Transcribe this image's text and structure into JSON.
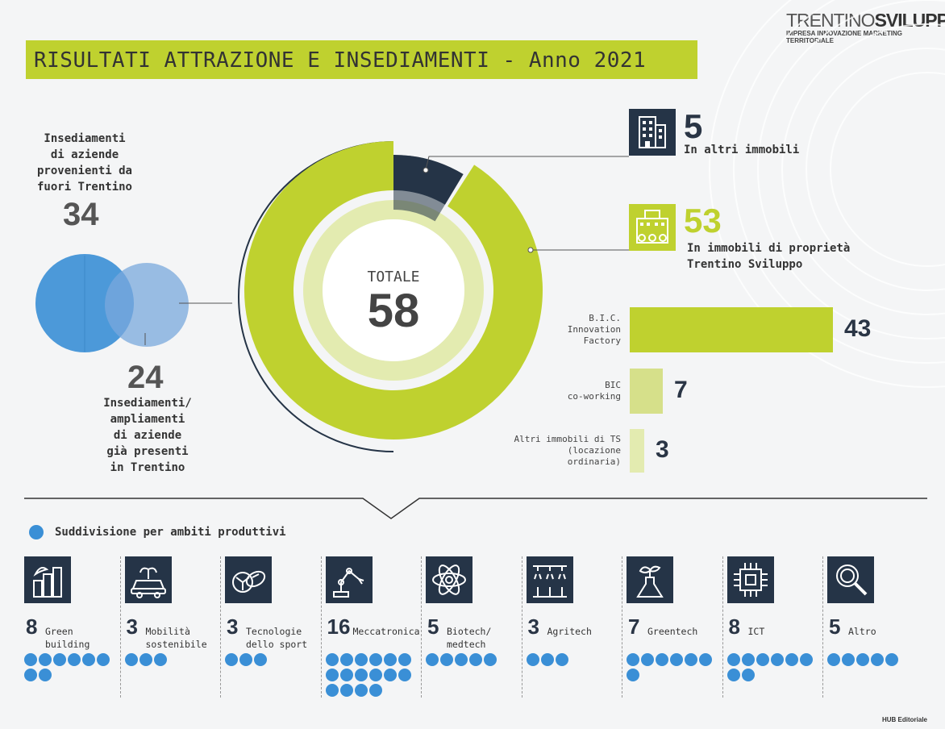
{
  "brand": {
    "name_light": "TRENTINO",
    "name_bold": "SVILUPPO",
    "tagline": "IMPRESA INNOVAZIONE MARKETING TERRITORIALE"
  },
  "title": "RISULTATI ATTRAZIONE E INSEDIAMENTI - Anno 2021",
  "colors": {
    "accent": "#bfd12f",
    "dark": "#253447",
    "blue": "#3a8fd6",
    "light_green": "#e3ebb0"
  },
  "venn": {
    "outside_label": "Insediamenti\ndi aziende\nprovenienti da\nfuori Trentino",
    "outside_value": "34",
    "present_label": "Insediamenti/\nampliamenti\ndi aziende\ngià presenti\nin Trentino",
    "present_value": "24"
  },
  "donut": {
    "total_label": "TOTALE",
    "total_value": "58"
  },
  "other_buildings": {
    "value": "5",
    "label": "In altri immobili",
    "icon": "building-icon"
  },
  "owned_buildings": {
    "value": "53",
    "label": "In immobili di proprietà\nTrentino Sviluppo",
    "icon": "campus-icon"
  },
  "footer": "HUB Editoriale",
  "section_label": "Suddivisione per ambiti produttivi",
  "chart_data": [
    {
      "type": "pie",
      "categories": [
        "In altri immobili",
        "In immobili di proprietà Trentino Sviluppo"
      ],
      "values": [
        5,
        53
      ],
      "title": "TOTALE 58"
    },
    {
      "type": "pie",
      "categories": [
        "Insediamenti di aziende provenienti da fuori Trentino",
        "Insediamenti/ampliamenti di aziende già presenti in Trentino"
      ],
      "values": [
        34,
        24
      ]
    },
    {
      "type": "bar",
      "categories": [
        "B.I.C.\nInnovation\nFactory",
        "BIC\nco-working",
        "Altri immobili di TS\n(locazione\nordinaria)"
      ],
      "values": [
        43,
        7,
        3
      ],
      "colors": [
        "#bfd12f",
        "#d6e08a",
        "#e3ebb0"
      ]
    },
    {
      "type": "bar",
      "categories": [
        "Green building",
        "Mobilità sostenibile",
        "Tecnologie dello sport",
        "Meccatronica",
        "Biotech/ medtech",
        "Agritech",
        "Greentech",
        "ICT",
        "Altro"
      ],
      "values": [
        8,
        3,
        3,
        16,
        5,
        3,
        7,
        8,
        5
      ],
      "icons": [
        "green-building-icon",
        "car-icon",
        "sports-balls-icon",
        "robot-arm-icon",
        "atom-icon",
        "irrigation-icon",
        "flask-plant-icon",
        "chip-icon",
        "magnifier-icon"
      ]
    }
  ]
}
